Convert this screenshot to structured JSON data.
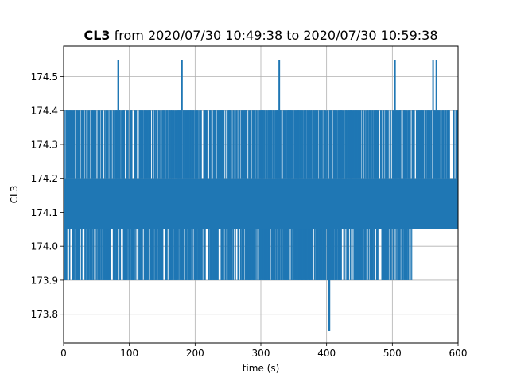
{
  "chart_data": {
    "type": "line",
    "title": {
      "bold": "CL3",
      "rest": "from 2020/07/30 10:49:38 to 2020/07/30 10:59:38"
    },
    "xlabel": "time (s)",
    "ylabel": "CL3",
    "xlim": [
      0,
      600
    ],
    "ylim": [
      173.715,
      174.59
    ],
    "xticks": [
      0,
      100,
      200,
      300,
      400,
      500,
      600
    ],
    "yticks": [
      173.8,
      173.9,
      174.0,
      174.1,
      174.2,
      174.3,
      174.4,
      174.5
    ],
    "ytick_labels": [
      "173.8",
      "173.9",
      "174.0",
      "174.1",
      "174.2",
      "174.3",
      "174.4",
      "174.5"
    ],
    "grid": true,
    "color": "#1f77b4",
    "series": [
      {
        "baseline_levels": [
          174.05,
          174.2
        ],
        "upper_level": 174.4,
        "lower_level": 173.9,
        "spikes_up": [
          {
            "x": 83,
            "y": 174.55
          },
          {
            "x": 180,
            "y": 174.55
          },
          {
            "x": 328,
            "y": 174.55
          },
          {
            "x": 504,
            "y": 174.55
          },
          {
            "x": 562,
            "y": 174.55
          },
          {
            "x": 567,
            "y": 174.55
          }
        ],
        "spikes_down": [
          {
            "x": 404,
            "y": 173.75
          }
        ],
        "lower_level_gaps": [
          [
            530,
            600
          ]
        ]
      }
    ]
  }
}
